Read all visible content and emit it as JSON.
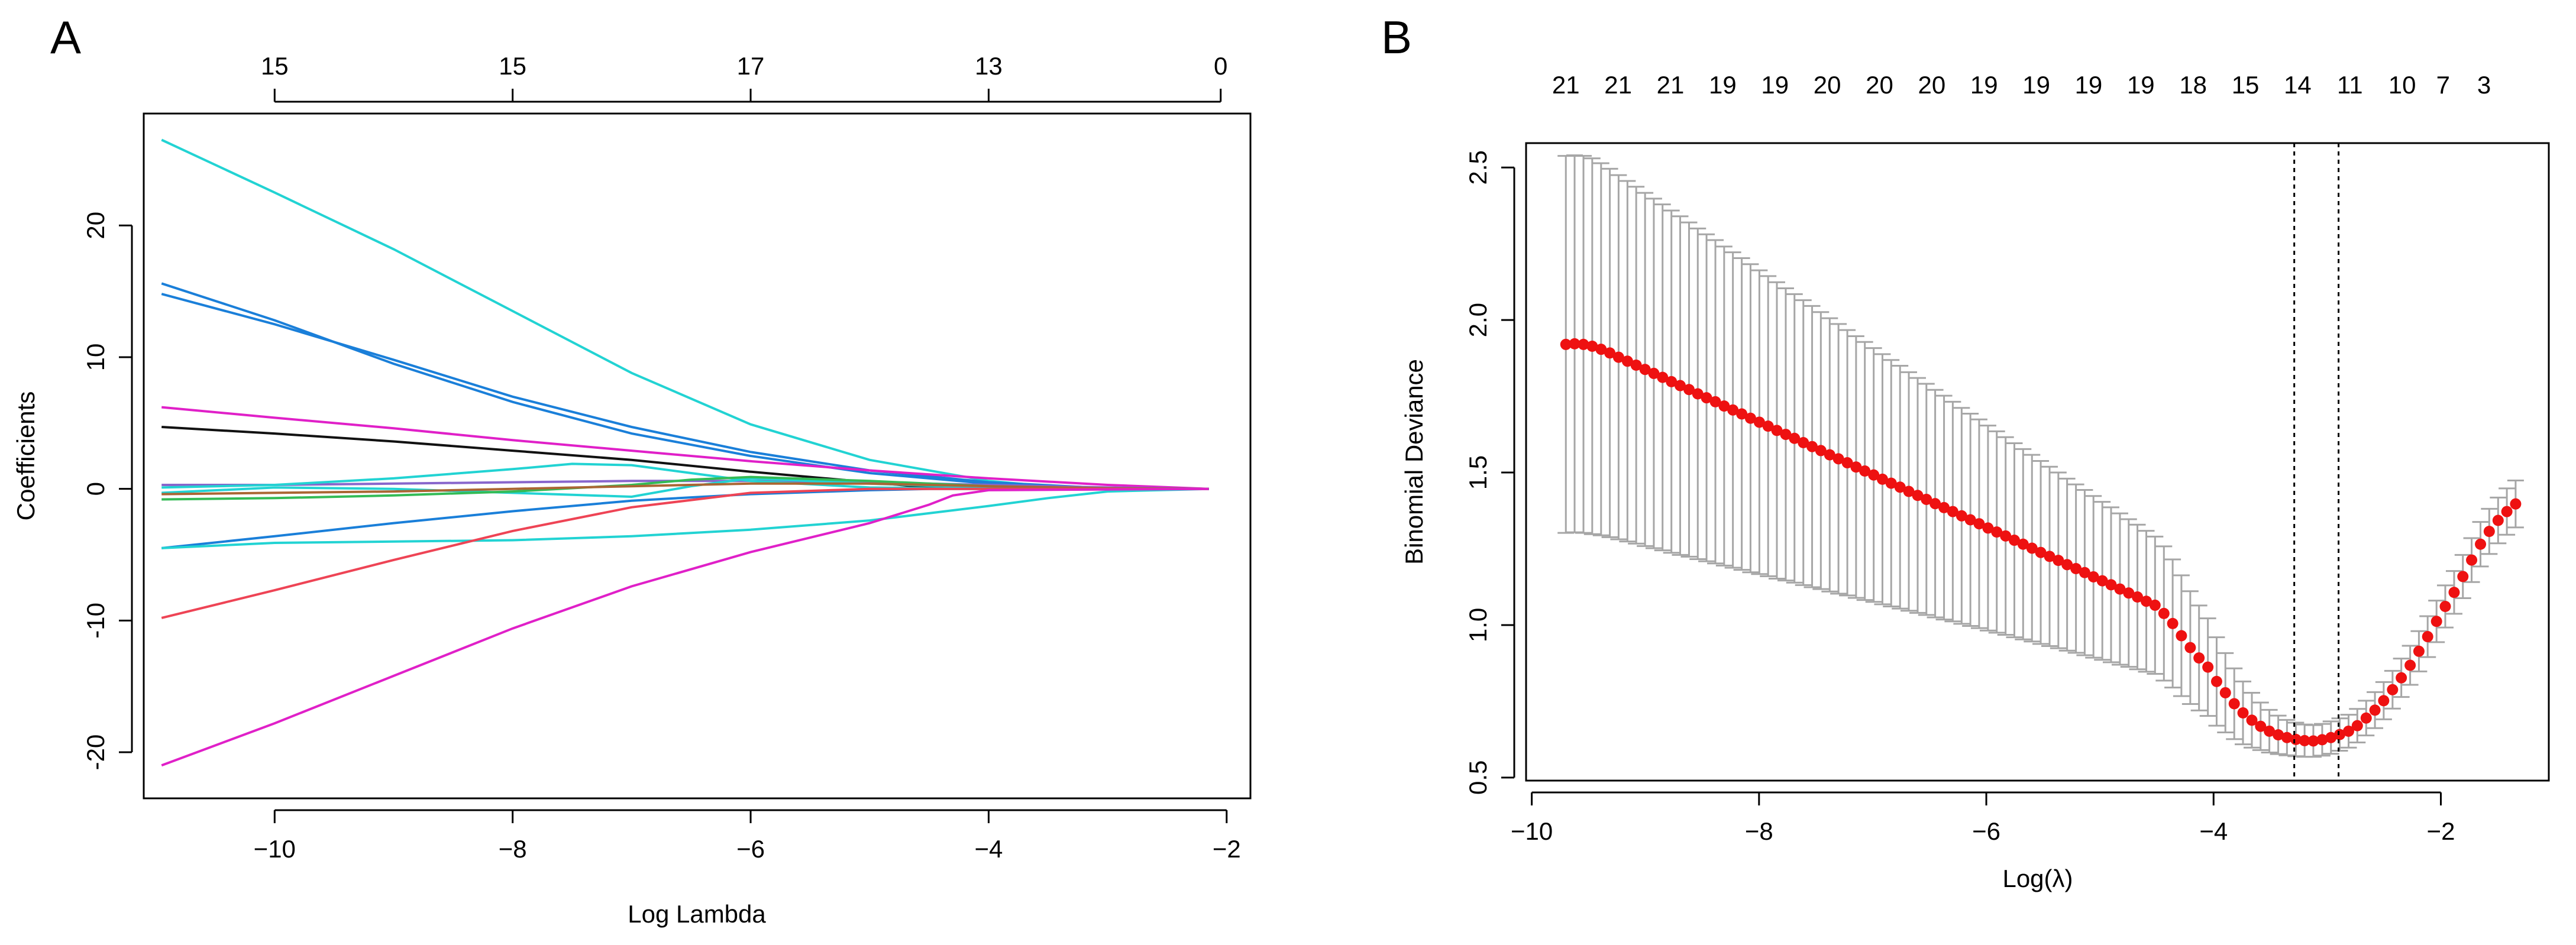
{
  "chart_data": [
    {
      "panel_label": "A",
      "type": "line",
      "xlabel": "Log Lambda",
      "ylabel": "Coefficients",
      "xlim": [
        -11.1,
        -1.8
      ],
      "ylim": [
        -23.5,
        28.5
      ],
      "xticks": [
        -10,
        -8,
        -6,
        -4,
        -2
      ],
      "xtick_labels": [
        "−10",
        "−8",
        "−6",
        "−4",
        "−2"
      ],
      "yticks": [
        -20,
        -10,
        0,
        10,
        20
      ],
      "ytick_labels": [
        "-20",
        "-10",
        "0",
        "10",
        "20"
      ],
      "top_axis": {
        "positions": [
          -10,
          -8,
          -6,
          -4,
          -2.05
        ],
        "labels": [
          "15",
          "15",
          "17",
          "13",
          "0"
        ]
      },
      "series": [
        {
          "name": "s1",
          "color": "#22d3d3",
          "x": [
            -10.95,
            -10,
            -9,
            -8,
            -7,
            -6,
            -5,
            -4,
            -3.5,
            -3,
            -2.5,
            -2.15
          ],
          "y": [
            26.5,
            22.5,
            18.2,
            13.5,
            8.8,
            4.9,
            2.2,
            0.6,
            0.2,
            0.05,
            0,
            0
          ]
        },
        {
          "name": "s2",
          "color": "#1a7fd9",
          "x": [
            -10.95,
            -10,
            -9,
            -8,
            -7,
            -6,
            -5,
            -4,
            -3,
            -2.15
          ],
          "y": [
            15.6,
            12.8,
            9.5,
            6.6,
            4.2,
            2.5,
            1.2,
            0.4,
            0.05,
            0
          ]
        },
        {
          "name": "s3",
          "color": "#1a7fd9",
          "x": [
            -10.95,
            -10,
            -9,
            -8,
            -7,
            -6,
            -5,
            -4,
            -3,
            -2.15
          ],
          "y": [
            14.8,
            12.5,
            9.8,
            7.0,
            4.7,
            2.8,
            1.4,
            0.5,
            0.05,
            0
          ]
        },
        {
          "name": "s4",
          "color": "#e020c8",
          "x": [
            -10.95,
            -10,
            -9,
            -8,
            -7,
            -6,
            -5,
            -4,
            -3,
            -2.15
          ],
          "y": [
            6.2,
            5.4,
            4.6,
            3.7,
            2.9,
            2.1,
            1.4,
            0.8,
            0.3,
            0
          ]
        },
        {
          "name": "s5",
          "color": "#111111",
          "x": [
            -10.95,
            -10,
            -9,
            -8,
            -7,
            -6,
            -5,
            -4.5,
            -4,
            -3.5,
            -2.15
          ],
          "y": [
            4.7,
            4.2,
            3.6,
            2.9,
            2.2,
            1.3,
            0.5,
            0.1,
            0,
            0,
            0
          ]
        },
        {
          "name": "s6",
          "color": "#8866cc",
          "x": [
            -10.95,
            -10,
            -9,
            -8,
            -7,
            -6,
            -5,
            -4,
            -3,
            -2.15
          ],
          "y": [
            0.3,
            0.3,
            0.4,
            0.5,
            0.6,
            0.6,
            0.5,
            0.3,
            0.1,
            0
          ]
        },
        {
          "name": "s7",
          "color": "#22d3d3",
          "x": [
            -10.95,
            -10,
            -9,
            -8,
            -7.5,
            -7,
            -6.5,
            -6,
            -5,
            -4,
            -3,
            -2.15
          ],
          "y": [
            0.1,
            0.3,
            0.8,
            1.5,
            1.9,
            1.8,
            1.2,
            0.6,
            0.1,
            0,
            0,
            0
          ]
        },
        {
          "name": "s8",
          "color": "#22d3d3",
          "x": [
            -10.95,
            -10,
            -9,
            -8,
            -7,
            -6.5,
            -6,
            -5,
            -4,
            -3,
            -2.15
          ],
          "y": [
            -0.3,
            0.1,
            0.0,
            -0.3,
            -0.6,
            0.2,
            0.8,
            0.4,
            0.1,
            0,
            0
          ]
        },
        {
          "name": "s9",
          "color": "#33bb55",
          "x": [
            -10.95,
            -10,
            -9,
            -8,
            -7,
            -6.5,
            -6,
            -5,
            -4,
            -3,
            -2.15
          ],
          "y": [
            -0.8,
            -0.7,
            -0.5,
            -0.2,
            0.3,
            0.7,
            0.9,
            0.6,
            0.2,
            0,
            0
          ]
        },
        {
          "name": "s10",
          "color": "#aa6633",
          "x": [
            -10.95,
            -10,
            -9,
            -8,
            -7,
            -6,
            -5,
            -4,
            -3,
            -2.15
          ],
          "y": [
            -0.4,
            -0.3,
            -0.2,
            0.0,
            0.2,
            0.4,
            0.4,
            0.2,
            0.05,
            0
          ]
        },
        {
          "name": "s11",
          "color": "#1a7fd9",
          "x": [
            -10.95,
            -10,
            -9,
            -8,
            -7,
            -6,
            -5,
            -4.5,
            -4,
            -3.5,
            -2.15
          ],
          "y": [
            -4.5,
            -3.6,
            -2.6,
            -1.7,
            -0.9,
            -0.4,
            -0.1,
            0,
            0,
            0,
            0
          ]
        },
        {
          "name": "s12",
          "color": "#22d3d3",
          "x": [
            -10.95,
            -10,
            -9,
            -8,
            -7,
            -6,
            -5,
            -4,
            -3.5,
            -3,
            -2.15
          ],
          "y": [
            -4.5,
            -4.1,
            -4.0,
            -3.9,
            -3.6,
            -3.1,
            -2.4,
            -1.3,
            -0.7,
            -0.2,
            0
          ]
        },
        {
          "name": "s13",
          "color": "#ee4455",
          "x": [
            -10.95,
            -10,
            -9,
            -8,
            -7,
            -6,
            -5,
            -4.5,
            -4,
            -3.5,
            -2.15
          ],
          "y": [
            -9.8,
            -7.7,
            -5.4,
            -3.2,
            -1.4,
            -0.3,
            0,
            0,
            0,
            0,
            0
          ]
        },
        {
          "name": "s14",
          "color": "#e020c8",
          "x": [
            -10.95,
            -10,
            -9,
            -8,
            -7,
            -6,
            -5,
            -4.5,
            -4.3,
            -4,
            -2.15
          ],
          "y": [
            -21,
            -17.8,
            -14.2,
            -10.6,
            -7.4,
            -4.8,
            -2.6,
            -1.2,
            -0.5,
            -0.1,
            0
          ]
        }
      ]
    },
    {
      "panel_label": "B",
      "type": "scatter",
      "xlabel": "Log(λ)",
      "ylabel": "Binomial Deviance",
      "xlim": [
        -10.05,
        -1.05
      ],
      "ylim": [
        0.49,
        2.58
      ],
      "xticks": [
        -10,
        -8,
        -6,
        -4,
        -2
      ],
      "xtick_labels": [
        "−10",
        "−8",
        "−6",
        "−4",
        "−2"
      ],
      "yticks": [
        0.5,
        1.0,
        1.5,
        2.0,
        2.5
      ],
      "ytick_labels": [
        "0.5",
        "1.0",
        "1.5",
        "2.0",
        "2.5"
      ],
      "top_axis": {
        "positions": [
          -9.7,
          -9.24,
          -8.78,
          -8.32,
          -7.86,
          -7.4,
          -6.94,
          -6.48,
          -6.02,
          -5.56,
          -5.1,
          -4.64,
          -4.18,
          -3.72,
          -3.26,
          -2.8,
          -2.34,
          -1.98,
          -1.62
        ],
        "labels": [
          "21",
          "21",
          "21",
          "19",
          "19",
          "20",
          "20",
          "20",
          "19",
          "19",
          "19",
          "19",
          "18",
          "15",
          "14",
          "11",
          "10",
          "7",
          "3"
        ]
      },
      "vlines": [
        -3.29,
        -2.9
      ],
      "points": {
        "x": [
          -9.7,
          -9.623,
          -9.545,
          -9.468,
          -9.39,
          -9.313,
          -9.236,
          -9.158,
          -9.081,
          -9.003,
          -8.926,
          -8.849,
          -8.771,
          -8.694,
          -8.616,
          -8.539,
          -8.462,
          -8.384,
          -8.307,
          -8.23,
          -8.152,
          -8.075,
          -7.997,
          -7.92,
          -7.843,
          -7.765,
          -7.688,
          -7.61,
          -7.533,
          -7.456,
          -7.378,
          -7.301,
          -7.223,
          -7.146,
          -7.069,
          -6.991,
          -6.914,
          -6.837,
          -6.759,
          -6.682,
          -6.604,
          -6.527,
          -6.45,
          -6.372,
          -6.295,
          -6.217,
          -6.14,
          -6.063,
          -5.985,
          -5.908,
          -5.83,
          -5.753,
          -5.676,
          -5.598,
          -5.521,
          -5.443,
          -5.366,
          -5.289,
          -5.211,
          -5.134,
          -5.057,
          -4.979,
          -4.902,
          -4.824,
          -4.747,
          -4.67,
          -4.592,
          -4.515,
          -4.437,
          -4.36,
          -4.283,
          -4.205,
          -4.128,
          -4.05,
          -3.973,
          -3.896,
          -3.818,
          -3.741,
          -3.663,
          -3.586,
          -3.509,
          -3.431,
          -3.354,
          -3.276,
          -3.199,
          -3.122,
          -3.044,
          -2.967,
          -2.89,
          -2.812,
          -2.735,
          -2.657,
          -2.58,
          -2.503,
          -2.425,
          -2.348,
          -2.27,
          -2.193,
          -2.116,
          -2.038,
          -1.961,
          -1.883,
          -1.806,
          -1.729,
          -1.651,
          -1.574,
          -1.496,
          -1.419,
          -1.342
        ],
        "y": [
          1.92,
          1.922,
          1.92,
          1.914,
          1.904,
          1.892,
          1.878,
          1.865,
          1.852,
          1.838,
          1.825,
          1.812,
          1.798,
          1.785,
          1.772,
          1.758,
          1.745,
          1.732,
          1.718,
          1.705,
          1.692,
          1.678,
          1.665,
          1.652,
          1.638,
          1.625,
          1.612,
          1.598,
          1.585,
          1.572,
          1.558,
          1.545,
          1.532,
          1.518,
          1.505,
          1.492,
          1.478,
          1.465,
          1.452,
          1.438,
          1.425,
          1.412,
          1.398,
          1.385,
          1.372,
          1.358,
          1.345,
          1.332,
          1.318,
          1.305,
          1.292,
          1.278,
          1.265,
          1.252,
          1.238,
          1.225,
          1.212,
          1.198,
          1.185,
          1.172,
          1.158,
          1.145,
          1.132,
          1.118,
          1.105,
          1.092,
          1.078,
          1.065,
          1.038,
          1.005,
          0.965,
          0.926,
          0.892,
          0.862,
          0.815,
          0.778,
          0.742,
          0.712,
          0.688,
          0.668,
          0.652,
          0.64,
          0.631,
          0.625,
          0.621,
          0.62,
          0.624,
          0.631,
          0.641,
          0.652,
          0.67,
          0.695,
          0.721,
          0.752,
          0.788,
          0.827,
          0.868,
          0.914,
          0.962,
          1.012,
          1.061,
          1.107,
          1.159,
          1.213,
          1.265,
          1.307,
          1.343,
          1.372,
          1.397
        ],
        "err": [
          0.618,
          0.618,
          0.618,
          0.616,
          0.61,
          0.604,
          0.597,
          0.591,
          0.585,
          0.579,
          0.573,
          0.567,
          0.561,
          0.555,
          0.548,
          0.542,
          0.536,
          0.53,
          0.523,
          0.517,
          0.511,
          0.505,
          0.498,
          0.492,
          0.486,
          0.479,
          0.473,
          0.467,
          0.461,
          0.454,
          0.448,
          0.442,
          0.435,
          0.429,
          0.423,
          0.416,
          0.41,
          0.404,
          0.398,
          0.391,
          0.385,
          0.379,
          0.373,
          0.367,
          0.36,
          0.354,
          0.348,
          0.342,
          0.336,
          0.33,
          0.324,
          0.318,
          0.312,
          0.306,
          0.3,
          0.294,
          0.288,
          0.282,
          0.276,
          0.271,
          0.265,
          0.259,
          0.254,
          0.248,
          0.242,
          0.237,
          0.231,
          0.225,
          0.22,
          0.21,
          0.198,
          0.185,
          0.172,
          0.16,
          0.145,
          0.13,
          0.116,
          0.103,
          0.09,
          0.078,
          0.07,
          0.063,
          0.058,
          0.055,
          0.053,
          0.052,
          0.052,
          0.053,
          0.053,
          0.054,
          0.055,
          0.057,
          0.059,
          0.061,
          0.062,
          0.063,
          0.064,
          0.066,
          0.067,
          0.068,
          0.069,
          0.07,
          0.071,
          0.072,
          0.073,
          0.074,
          0.075,
          0.076,
          0.077
        ]
      },
      "colors": {
        "point": "#ee1111",
        "errorbar": "#a6a6a6",
        "vline": "#000000"
      }
    }
  ]
}
